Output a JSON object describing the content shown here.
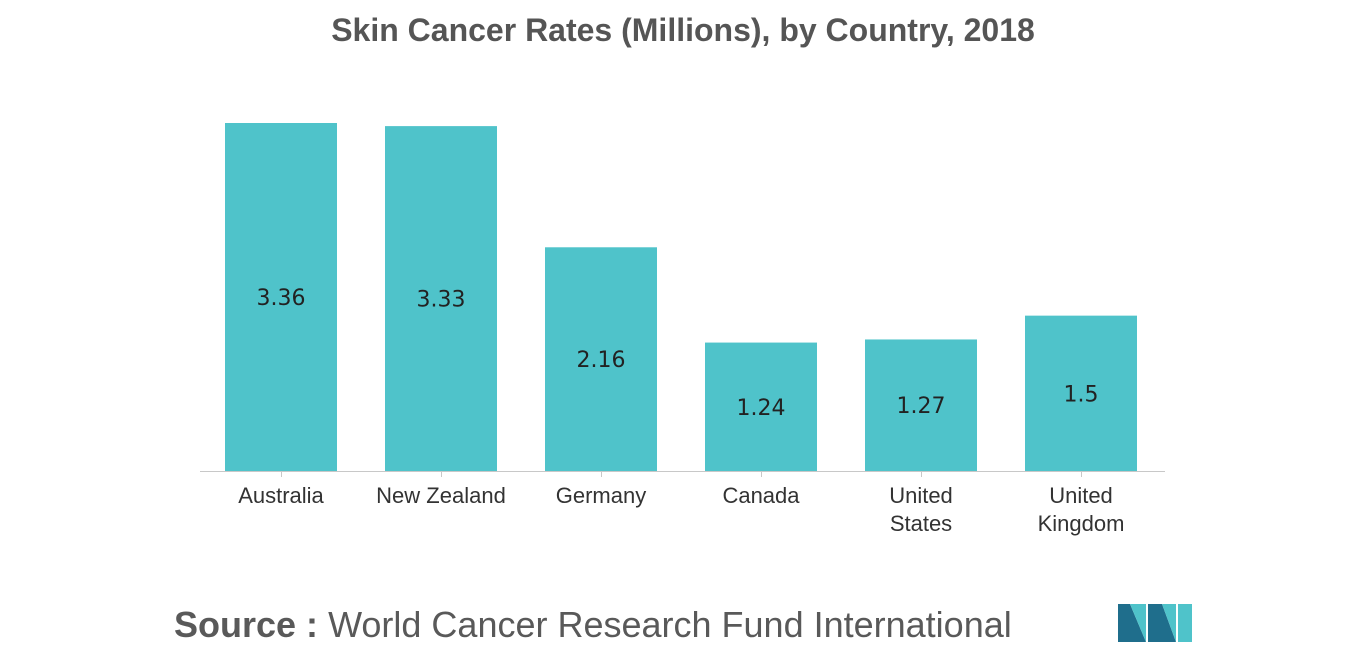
{
  "chart_data": {
    "type": "bar",
    "title": "Skin Cancer Rates (Millions), by Country, 2018",
    "categories": [
      [
        "Australia"
      ],
      [
        "New Zealand"
      ],
      [
        "Germany"
      ],
      [
        "Canada"
      ],
      [
        "United",
        "States"
      ],
      [
        "United",
        "Kingdom"
      ]
    ],
    "values": [
      3.36,
      3.33,
      2.16,
      1.24,
      1.27,
      1.5
    ],
    "data_labels": [
      "3.36",
      "3.33",
      "2.16",
      "1.24",
      "1.27",
      "1.5"
    ],
    "xlabel": "",
    "ylabel": "",
    "ylim": [
      0,
      3.36
    ],
    "grid": false,
    "legend": "none",
    "bar_color": "#4FC3CA"
  },
  "source": {
    "label": "Source :",
    "text": "World Cancer Research Fund International"
  },
  "colors": {
    "title": "#555555",
    "axis": "#c8c8c8",
    "logo_dark": "#1F6E8C",
    "logo_light": "#4FC3CA"
  }
}
